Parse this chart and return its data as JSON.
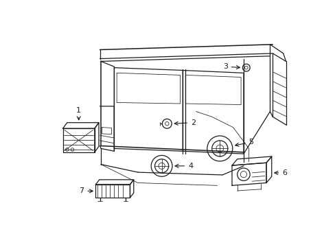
{
  "bg_color": "#ffffff",
  "line_color": "#1a1a1a",
  "label_color": "#1a1a1a",
  "label_fs": 8.0,
  "lw_main": 0.9,
  "lw_thin": 0.55,
  "lw_thick": 1.1
}
